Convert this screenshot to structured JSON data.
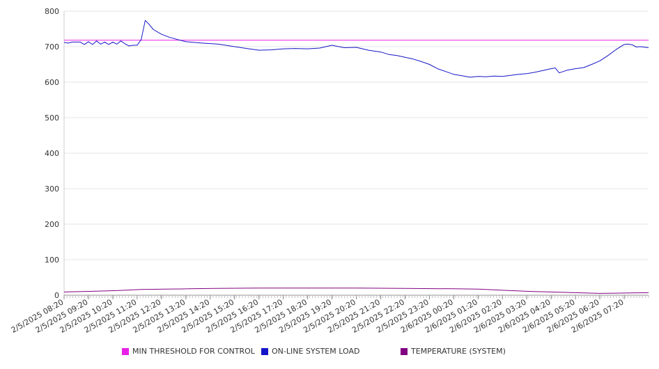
{
  "chart_data": {
    "type": "line",
    "title": "",
    "xlabel": "",
    "ylabel": "",
    "ylim": [
      0,
      800
    ],
    "y_ticks": [
      0,
      100,
      200,
      300,
      400,
      500,
      600,
      700,
      800
    ],
    "grid": true,
    "legend_position": "bottom",
    "x_tick_labels": [
      "2/5/2025 08:20",
      "2/5/2025 09:20",
      "2/5/2025 10:20",
      "2/5/2025 11:20",
      "2/5/2025 12:20",
      "2/5/2025 13:20",
      "2/5/2025 14:20",
      "2/5/2025 15:20",
      "2/5/2025 16:20",
      "2/5/2025 17:20",
      "2/5/2025 18:20",
      "2/5/2025 19:20",
      "2/5/2025 20:20",
      "2/5/2025 21:20",
      "2/5/2025 22:20",
      "2/5/2025 23:20",
      "2/6/2025 00:20",
      "2/6/2025 01:20",
      "2/6/2025 02:20",
      "2/6/2025 03:20",
      "2/6/2025 04:20",
      "2/6/2025 05:20",
      "2/6/2025 06:20",
      "2/6/2025 07:20"
    ],
    "series": [
      {
        "name": "MIN THRESHOLD FOR CONTROL",
        "color": "#e81ee8",
        "points": [
          [
            "2/5/2025 08:20",
            718
          ],
          [
            "2/6/2025 08:20",
            718
          ]
        ]
      },
      {
        "name": "ON-LINE SYSTEM LOAD",
        "color": "#1515c8",
        "points": [
          [
            "2/5/2025 08:20",
            712
          ],
          [
            "2/5/2025 08:30",
            710
          ],
          [
            "2/5/2025 08:40",
            713
          ],
          [
            "2/5/2025 09:00",
            713
          ],
          [
            "2/5/2025 09:10",
            706
          ],
          [
            "2/5/2025 09:20",
            714
          ],
          [
            "2/5/2025 09:30",
            706
          ],
          [
            "2/5/2025 09:40",
            716
          ],
          [
            "2/5/2025 09:50",
            707
          ],
          [
            "2/5/2025 10:00",
            713
          ],
          [
            "2/5/2025 10:10",
            706
          ],
          [
            "2/5/2025 10:20",
            713
          ],
          [
            "2/5/2025 10:30",
            707
          ],
          [
            "2/5/2025 10:40",
            716
          ],
          [
            "2/5/2025 10:50",
            708
          ],
          [
            "2/5/2025 11:00",
            702
          ],
          [
            "2/5/2025 11:10",
            704
          ],
          [
            "2/5/2025 11:20",
            704
          ],
          [
            "2/5/2025 11:30",
            720
          ],
          [
            "2/5/2025 11:40",
            774
          ],
          [
            "2/5/2025 11:50",
            762
          ],
          [
            "2/5/2025 12:00",
            748
          ],
          [
            "2/5/2025 12:20",
            735
          ],
          [
            "2/5/2025 12:40",
            726
          ],
          [
            "2/5/2025 13:00",
            720
          ],
          [
            "2/5/2025 13:20",
            714
          ],
          [
            "2/5/2025 14:00",
            710
          ],
          [
            "2/5/2025 14:40",
            707
          ],
          [
            "2/5/2025 15:20",
            700
          ],
          [
            "2/5/2025 15:50",
            695
          ],
          [
            "2/5/2025 16:20",
            690
          ],
          [
            "2/5/2025 16:50",
            691
          ],
          [
            "2/5/2025 17:20",
            694
          ],
          [
            "2/5/2025 17:50",
            695
          ],
          [
            "2/5/2025 18:20",
            694
          ],
          [
            "2/5/2025 18:50",
            696
          ],
          [
            "2/5/2025 19:20",
            704
          ],
          [
            "2/5/2025 19:50",
            697
          ],
          [
            "2/5/2025 20:20",
            698
          ],
          [
            "2/5/2025 20:50",
            690
          ],
          [
            "2/5/2025 21:20",
            685
          ],
          [
            "2/5/2025 21:40",
            678
          ],
          [
            "2/5/2025 22:00",
            675
          ],
          [
            "2/5/2025 22:20",
            670
          ],
          [
            "2/5/2025 22:40",
            665
          ],
          [
            "2/5/2025 23:00",
            658
          ],
          [
            "2/5/2025 23:20",
            650
          ],
          [
            "2/5/2025 23:40",
            638
          ],
          [
            "2/6/2025 00:00",
            630
          ],
          [
            "2/6/2025 00:20",
            622
          ],
          [
            "2/6/2025 00:40",
            618
          ],
          [
            "2/6/2025 01:00",
            614
          ],
          [
            "2/6/2025 01:20",
            616
          ],
          [
            "2/6/2025 01:40",
            615
          ],
          [
            "2/6/2025 02:00",
            617
          ],
          [
            "2/6/2025 02:20",
            616
          ],
          [
            "2/6/2025 02:40",
            619
          ],
          [
            "2/6/2025 03:00",
            622
          ],
          [
            "2/6/2025 03:20",
            624
          ],
          [
            "2/6/2025 03:40",
            628
          ],
          [
            "2/6/2025 04:00",
            633
          ],
          [
            "2/6/2025 04:20",
            638
          ],
          [
            "2/6/2025 04:30",
            640
          ],
          [
            "2/6/2025 04:40",
            626
          ],
          [
            "2/6/2025 04:50",
            630
          ],
          [
            "2/6/2025 05:00",
            634
          ],
          [
            "2/6/2025 05:20",
            638
          ],
          [
            "2/6/2025 05:40",
            641
          ],
          [
            "2/6/2025 06:00",
            650
          ],
          [
            "2/6/2025 06:20",
            660
          ],
          [
            "2/6/2025 06:40",
            675
          ],
          [
            "2/6/2025 07:00",
            692
          ],
          [
            "2/6/2025 07:20",
            706
          ],
          [
            "2/6/2025 07:30",
            707
          ],
          [
            "2/6/2025 07:40",
            705
          ],
          [
            "2/6/2025 07:50",
            699
          ],
          [
            "2/6/2025 08:00",
            700
          ],
          [
            "2/6/2025 08:20",
            697
          ]
        ]
      },
      {
        "name": "TEMPERATURE (SYSTEM)",
        "color": "#800080",
        "points": [
          [
            "2/5/2025 08:20",
            9
          ],
          [
            "2/5/2025 09:30",
            11
          ],
          [
            "2/5/2025 10:30",
            13
          ],
          [
            "2/5/2025 11:30",
            16
          ],
          [
            "2/5/2025 12:30",
            17
          ],
          [
            "2/5/2025 13:30",
            18
          ],
          [
            "2/5/2025 14:30",
            19
          ],
          [
            "2/5/2025 16:20",
            20
          ],
          [
            "2/5/2025 20:20",
            20
          ],
          [
            "2/5/2025 22:20",
            19
          ],
          [
            "2/6/2025 00:20",
            18
          ],
          [
            "2/6/2025 01:20",
            17
          ],
          [
            "2/6/2025 02:20",
            14
          ],
          [
            "2/6/2025 03:20",
            11
          ],
          [
            "2/6/2025 04:20",
            9
          ],
          [
            "2/6/2025 05:20",
            7
          ],
          [
            "2/6/2025 06:20",
            5
          ],
          [
            "2/6/2025 07:20",
            6
          ],
          [
            "2/6/2025 08:20",
            7
          ]
        ]
      }
    ]
  }
}
